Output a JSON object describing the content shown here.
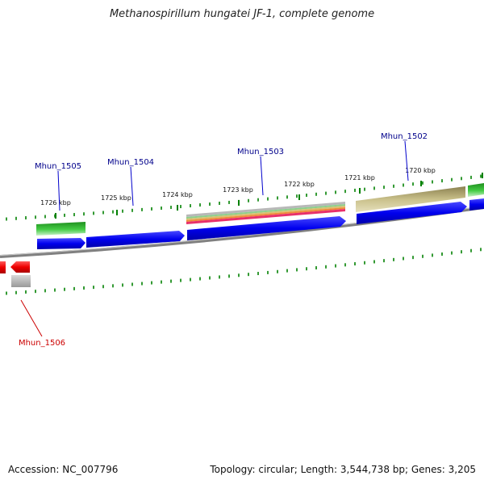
{
  "title": "Methanospirillum hungatei JF-1, complete genome",
  "footer": {
    "accession": "Accession: NC_007796",
    "summary": "Topology: circular; Length: 3,544,738 bp; Genes: 3,205"
  },
  "scale_labels": [
    "1726 kbp",
    "1725 kbp",
    "1724 kbp",
    "1723 kbp",
    "1722 kbp",
    "1721 kbp",
    "1720 kbp"
  ],
  "gene_labels": [
    "Mhun_1505",
    "Mhun_1504",
    "Mhun_1503",
    "Mhun_1502",
    "Mhun_1506"
  ],
  "colors": {
    "cds_forward": "#0000ee",
    "cds_reverse": "#ff0000",
    "backbone": "#808080",
    "tick": "#008000",
    "label_forward": "#00008b",
    "label_reverse": "#cc0000",
    "feature_green": "#33bb33",
    "feature_olive": "#bdb76b",
    "feature_grey": "#b0b0b0"
  }
}
